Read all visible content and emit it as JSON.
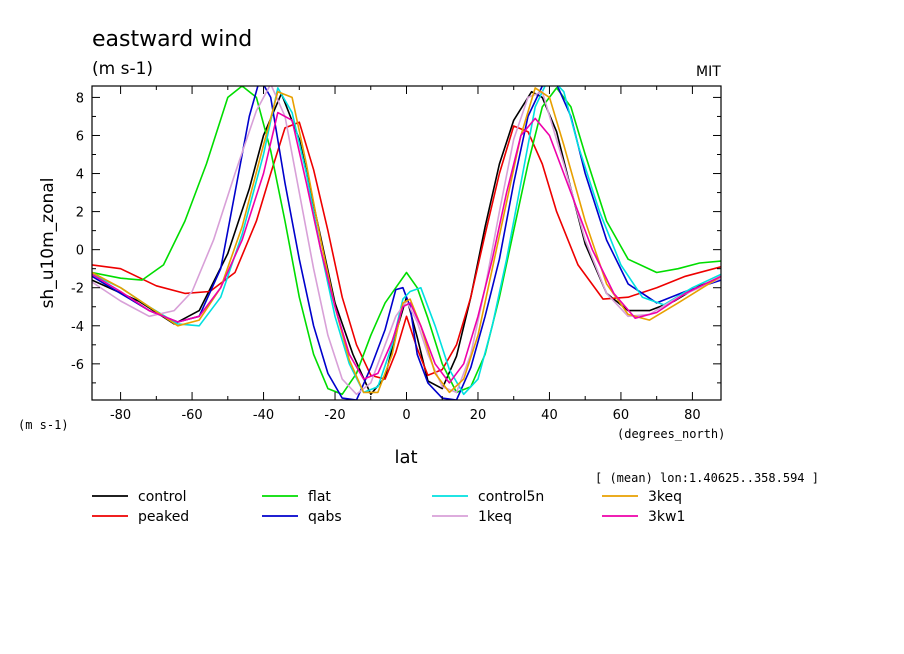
{
  "chart_data": {
    "type": "line",
    "title": "eastward wind",
    "units": "(m s-1)",
    "corner_label": "MIT",
    "ylabel": "sh_u10m_zonal",
    "y_units": "(m s-1)",
    "xlabel": "lat",
    "x_units": "(degrees_north)",
    "averaging_note": "[ (mean) lon:1.40625..358.594 ]",
    "xlim": [
      -88,
      88
    ],
    "ylim": [
      -7.9,
      8.6
    ],
    "x_ticks": [
      -80,
      -60,
      -40,
      -20,
      0,
      20,
      40,
      60,
      80
    ],
    "y_ticks": [
      -6,
      -4,
      -2,
      0,
      2,
      4,
      6,
      8
    ],
    "grid": false,
    "legend_position": "bottom",
    "series": [
      {
        "name": "control",
        "color": "#000000",
        "x": [
          -88,
          -75,
          -65,
          -58,
          -50,
          -44,
          -40,
          -35,
          -30,
          -25,
          -20,
          -15,
          -10,
          -6,
          -3,
          0,
          3,
          6,
          10,
          14,
          18,
          22,
          26,
          30,
          35,
          38,
          42,
          46,
          50,
          56,
          62,
          68,
          75,
          82,
          88
        ],
        "y": [
          -1.6,
          -2.7,
          -3.9,
          -3.2,
          -0.2,
          3.2,
          6.0,
          8.2,
          5.8,
          1.5,
          -2.8,
          -5.5,
          -7.6,
          -6.7,
          -4.4,
          -2.5,
          -4.6,
          -6.9,
          -7.3,
          -5.6,
          -2.5,
          1.2,
          4.5,
          6.8,
          8.3,
          8.0,
          6.2,
          3.2,
          0.3,
          -2.3,
          -3.2,
          -3.2,
          -2.7,
          -1.9,
          -1.5
        ]
      },
      {
        "name": "peaked",
        "color": "#ee0000",
        "x": [
          -88,
          -80,
          -70,
          -62,
          -55,
          -48,
          -42,
          -38,
          -34,
          -30,
          -26,
          -22,
          -18,
          -14,
          -10,
          -6,
          -3,
          0,
          3,
          6,
          10,
          14,
          18,
          22,
          26,
          30,
          34,
          38,
          42,
          48,
          55,
          62,
          70,
          78,
          88
        ],
        "y": [
          -0.8,
          -1.0,
          -1.9,
          -2.3,
          -2.2,
          -1.2,
          1.5,
          4.0,
          6.4,
          6.7,
          4.2,
          1.0,
          -2.5,
          -5.0,
          -6.6,
          -6.8,
          -5.4,
          -3.5,
          -5.2,
          -6.6,
          -6.3,
          -5.0,
          -2.5,
          0.8,
          4.0,
          6.5,
          6.2,
          4.5,
          2.0,
          -0.8,
          -2.6,
          -2.5,
          -2.0,
          -1.4,
          -0.9
        ]
      },
      {
        "name": "flat",
        "color": "#00dd00",
        "x": [
          -88,
          -80,
          -74,
          -68,
          -62,
          -56,
          -50,
          -46,
          -42,
          -38,
          -34,
          -30,
          -26,
          -22,
          -18,
          -14,
          -10,
          -6,
          -3,
          0,
          3,
          6,
          10,
          14,
          18,
          22,
          26,
          30,
          34,
          38,
          42,
          46,
          50,
          56,
          62,
          70,
          76,
          82,
          88
        ],
        "y": [
          -1.2,
          -1.5,
          -1.6,
          -0.8,
          1.5,
          4.5,
          8.0,
          8.6,
          8.0,
          5.2,
          1.5,
          -2.5,
          -5.5,
          -7.3,
          -7.6,
          -6.5,
          -4.5,
          -2.8,
          -2.0,
          -1.2,
          -2.0,
          -3.6,
          -6.0,
          -7.5,
          -7.2,
          -5.5,
          -2.5,
          1.0,
          4.5,
          7.5,
          8.5,
          7.5,
          5.0,
          1.5,
          -0.5,
          -1.2,
          -1.0,
          -0.7,
          -0.6
        ]
      },
      {
        "name": "qabs",
        "color": "#0000cc",
        "x": [
          -88,
          -80,
          -72,
          -64,
          -58,
          -52,
          -48,
          -44,
          -41,
          -38,
          -34,
          -30,
          -26,
          -22,
          -18,
          -14,
          -10,
          -6,
          -3,
          -1,
          1,
          3,
          6,
          10,
          14,
          18,
          22,
          26,
          30,
          34,
          38,
          42,
          46,
          50,
          56,
          62,
          70,
          78,
          88
        ],
        "y": [
          -1.4,
          -2.3,
          -3.2,
          -3.8,
          -3.5,
          -1.0,
          3.0,
          7.0,
          9.0,
          8.0,
          3.5,
          -0.5,
          -4.0,
          -6.5,
          -7.8,
          -7.9,
          -6.2,
          -4.2,
          -2.1,
          -2.0,
          -3.0,
          -5.5,
          -7.0,
          -7.8,
          -7.9,
          -6.2,
          -3.5,
          -0.5,
          3.5,
          7.0,
          8.6,
          8.7,
          7.0,
          4.0,
          0.5,
          -1.8,
          -2.8,
          -2.2,
          -1.6
        ]
      },
      {
        "name": "control5n",
        "color": "#00e0e0",
        "x": [
          -88,
          -80,
          -72,
          -64,
          -58,
          -52,
          -46,
          -40,
          -36,
          -32,
          -28,
          -24,
          -20,
          -16,
          -12,
          -8,
          -4,
          -1,
          1,
          4,
          8,
          12,
          16,
          20,
          24,
          28,
          32,
          36,
          40,
          44,
          48,
          54,
          60,
          66,
          72,
          80,
          88
        ],
        "y": [
          -1.3,
          -2.0,
          -3.0,
          -3.9,
          -4.0,
          -2.5,
          0.8,
          5.0,
          8.5,
          7.2,
          4.0,
          0.0,
          -3.5,
          -6.0,
          -7.5,
          -7.2,
          -5.0,
          -2.6,
          -2.2,
          -2.0,
          -4.0,
          -6.3,
          -7.6,
          -6.8,
          -4.0,
          -0.5,
          3.5,
          7.5,
          9.1,
          8.3,
          5.5,
          2.0,
          -0.8,
          -2.5,
          -2.9,
          -2.0,
          -1.3
        ]
      },
      {
        "name": "1keq",
        "color": "#d8a0d8",
        "x": [
          -88,
          -80,
          -72,
          -65,
          -60,
          -54,
          -48,
          -42,
          -38,
          -34,
          -30,
          -26,
          -22,
          -18,
          -14,
          -10,
          -6,
          -3,
          0,
          3,
          6,
          10,
          14,
          18,
          22,
          26,
          30,
          34,
          38,
          44,
          50,
          56,
          62,
          68,
          76,
          88
        ],
        "y": [
          -1.7,
          -2.7,
          -3.5,
          -3.2,
          -2.2,
          0.5,
          4.0,
          7.3,
          8.7,
          7.0,
          3.0,
          -1.0,
          -4.5,
          -6.8,
          -7.6,
          -7.0,
          -5.0,
          -3.5,
          -2.7,
          -3.8,
          -5.5,
          -7.2,
          -7.5,
          -5.5,
          -2.0,
          2.0,
          5.8,
          8.0,
          8.3,
          4.5,
          0.5,
          -2.3,
          -3.5,
          -3.4,
          -2.5,
          -1.5
        ]
      },
      {
        "name": "3keq",
        "color": "#e8a000",
        "x": [
          -88,
          -80,
          -72,
          -64,
          -58,
          -52,
          -46,
          -40,
          -36,
          -32,
          -28,
          -24,
          -20,
          -16,
          -12,
          -8,
          -4,
          -1,
          1,
          4,
          8,
          12,
          16,
          20,
          24,
          28,
          32,
          36,
          40,
          44,
          50,
          56,
          62,
          68,
          76,
          88
        ],
        "y": [
          -1.2,
          -2.0,
          -3.0,
          -4.0,
          -3.7,
          -2.0,
          1.2,
          5.5,
          8.3,
          8.0,
          4.5,
          0.5,
          -3.0,
          -5.8,
          -7.5,
          -7.5,
          -5.5,
          -2.8,
          -2.6,
          -4.0,
          -6.5,
          -7.5,
          -6.8,
          -4.5,
          -1.0,
          2.5,
          6.0,
          8.5,
          8.0,
          5.5,
          1.5,
          -1.8,
          -3.4,
          -3.7,
          -2.8,
          -1.4
        ]
      },
      {
        "name": "3kw1",
        "color": "#ee00aa",
        "x": [
          -88,
          -80,
          -72,
          -64,
          -58,
          -52,
          -46,
          -40,
          -36,
          -32,
          -28,
          -24,
          -20,
          -16,
          -12,
          -8,
          -4,
          -1,
          1,
          4,
          8,
          12,
          16,
          20,
          24,
          28,
          32,
          36,
          40,
          46,
          52,
          58,
          64,
          70,
          78,
          88
        ],
        "y": [
          -1.3,
          -2.2,
          -3.2,
          -3.8,
          -3.5,
          -2.0,
          0.5,
          4.0,
          7.2,
          6.8,
          3.5,
          0.0,
          -3.0,
          -5.5,
          -6.8,
          -6.5,
          -4.8,
          -3.0,
          -2.8,
          -4.0,
          -6.0,
          -7.0,
          -6.0,
          -3.5,
          -0.5,
          3.0,
          6.0,
          6.9,
          6.0,
          3.0,
          0.0,
          -2.3,
          -3.6,
          -3.3,
          -2.3,
          -1.4
        ]
      }
    ]
  }
}
